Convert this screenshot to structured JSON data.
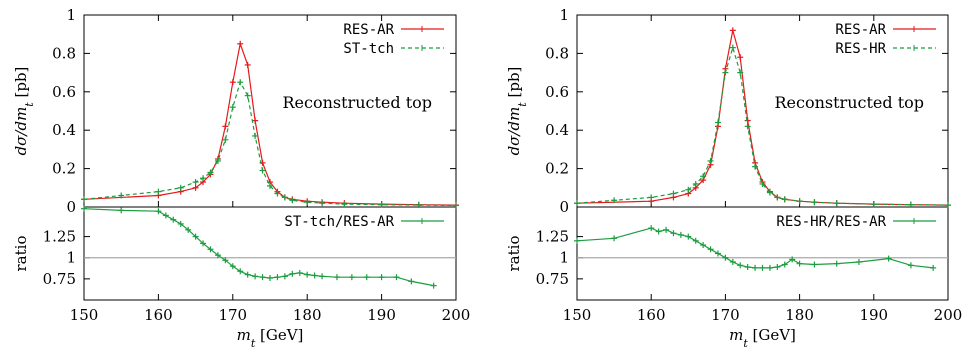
{
  "chart_data": [
    {
      "type": "line",
      "main": {
        "ylabel": "dσ/dm_t [pb]",
        "ylim": [
          0,
          1
        ],
        "yticks": [
          "0",
          "0.2",
          "0.4",
          "0.6",
          "0.8",
          "1"
        ],
        "annotation": "Reconstructed top",
        "legend_position": "top-right",
        "series": [
          {
            "name": "RES-AR",
            "color": "#e41a1c",
            "style": "solid",
            "x": [
              150,
              160,
              163,
              165,
              166,
              167,
              168,
              169,
              170,
              171,
              172,
              173,
              174,
              175,
              176,
              177,
              178,
              180,
              182,
              185,
              190,
              195,
              200
            ],
            "y": [
              0.04,
              0.06,
              0.08,
              0.1,
              0.13,
              0.17,
              0.25,
              0.42,
              0.65,
              0.85,
              0.74,
              0.45,
              0.23,
              0.13,
              0.08,
              0.05,
              0.04,
              0.03,
              0.025,
              0.02,
              0.015,
              0.012,
              0.01
            ]
          },
          {
            "name": "ST-tch",
            "color": "#1b9e3f",
            "style": "dashed",
            "x": [
              150,
              155,
              160,
              163,
              165,
              166,
              167,
              168,
              169,
              170,
              171,
              172,
              173,
              174,
              175,
              176,
              177,
              178,
              180,
              182,
              185,
              190,
              195,
              200
            ],
            "y": [
              0.04,
              0.06,
              0.08,
              0.1,
              0.13,
              0.15,
              0.18,
              0.24,
              0.35,
              0.52,
              0.65,
              0.58,
              0.37,
              0.19,
              0.11,
              0.07,
              0.05,
              0.035,
              0.025,
              0.02,
              0.015,
              0.012,
              0.01,
              0.008
            ]
          }
        ]
      },
      "ratio": {
        "ylabel": "ratio",
        "ylim": [
          0.5,
          1.6
        ],
        "yticks": [
          "0.75",
          "1",
          "1.25"
        ],
        "legend": "ST-tch/RES-AR",
        "color": "#1b9e3f",
        "x": [
          150,
          155,
          160,
          161,
          162,
          163,
          164,
          165,
          166,
          167,
          168,
          169,
          170,
          171,
          172,
          173,
          174,
          175,
          176,
          177,
          178,
          179,
          180,
          181,
          182,
          184,
          186,
          188,
          190,
          192,
          194,
          197
        ],
        "y": [
          1.58,
          1.56,
          1.55,
          1.5,
          1.45,
          1.4,
          1.33,
          1.25,
          1.17,
          1.1,
          1.03,
          0.97,
          0.9,
          0.84,
          0.8,
          0.78,
          0.77,
          0.76,
          0.77,
          0.78,
          0.81,
          0.82,
          0.8,
          0.79,
          0.78,
          0.77,
          0.77,
          0.77,
          0.77,
          0.77,
          0.72,
          0.67
        ]
      },
      "xlabel": "m_t [GeV]",
      "xlim": [
        150,
        200
      ],
      "xticks": [
        "150",
        "160",
        "170",
        "180",
        "190",
        "200"
      ]
    },
    {
      "type": "line",
      "main": {
        "ylabel": "dσ/dm_t [pb]",
        "ylim": [
          0,
          1
        ],
        "yticks": [
          "0",
          "0.2",
          "0.4",
          "0.6",
          "0.8",
          "1"
        ],
        "annotation": "Reconstructed top",
        "legend_position": "top-right",
        "series": [
          {
            "name": "RES-AR",
            "color": "#e41a1c",
            "style": "solid",
            "x": [
              150,
              160,
              163,
              165,
              166,
              167,
              168,
              169,
              170,
              171,
              172,
              173,
              174,
              175,
              176,
              177,
              178,
              180,
              182,
              185,
              190,
              195,
              200
            ],
            "y": [
              0.02,
              0.03,
              0.05,
              0.07,
              0.1,
              0.14,
              0.22,
              0.42,
              0.72,
              0.92,
              0.78,
              0.45,
              0.23,
              0.13,
              0.08,
              0.05,
              0.04,
              0.03,
              0.025,
              0.02,
              0.015,
              0.012,
              0.01
            ]
          },
          {
            "name": "RES-HR",
            "color": "#1b9e3f",
            "style": "dashed",
            "x": [
              150,
              155,
              160,
              163,
              165,
              166,
              167,
              168,
              169,
              170,
              171,
              172,
              173,
              174,
              175,
              176,
              177,
              178,
              180,
              182,
              185,
              190,
              195,
              200
            ],
            "y": [
              0.02,
              0.035,
              0.05,
              0.07,
              0.09,
              0.12,
              0.16,
              0.24,
              0.44,
              0.7,
              0.83,
              0.7,
              0.42,
              0.21,
              0.12,
              0.075,
              0.05,
              0.04,
              0.03,
              0.025,
              0.02,
              0.015,
              0.012,
              0.01
            ]
          }
        ]
      },
      "ratio": {
        "ylabel": "ratio",
        "ylim": [
          0.5,
          1.6
        ],
        "yticks": [
          "0.75",
          "1",
          "1.25"
        ],
        "legend": "RES-HR/RES-AR",
        "color": "#1b9e3f",
        "x": [
          150,
          155,
          160,
          161,
          162,
          163,
          164,
          165,
          166,
          167,
          168,
          169,
          170,
          171,
          172,
          173,
          174,
          175,
          176,
          177,
          178,
          179,
          180,
          182,
          185,
          188,
          192,
          195,
          198
        ],
        "y": [
          1.2,
          1.23,
          1.35,
          1.31,
          1.33,
          1.29,
          1.27,
          1.25,
          1.2,
          1.15,
          1.1,
          1.05,
          1.0,
          0.95,
          0.91,
          0.89,
          0.88,
          0.88,
          0.88,
          0.89,
          0.92,
          0.98,
          0.93,
          0.92,
          0.93,
          0.95,
          0.99,
          0.91,
          0.88
        ]
      },
      "xlabel": "m_t [GeV]",
      "xlim": [
        150,
        200
      ],
      "xticks": [
        "150",
        "160",
        "170",
        "180",
        "190",
        "200"
      ]
    }
  ]
}
